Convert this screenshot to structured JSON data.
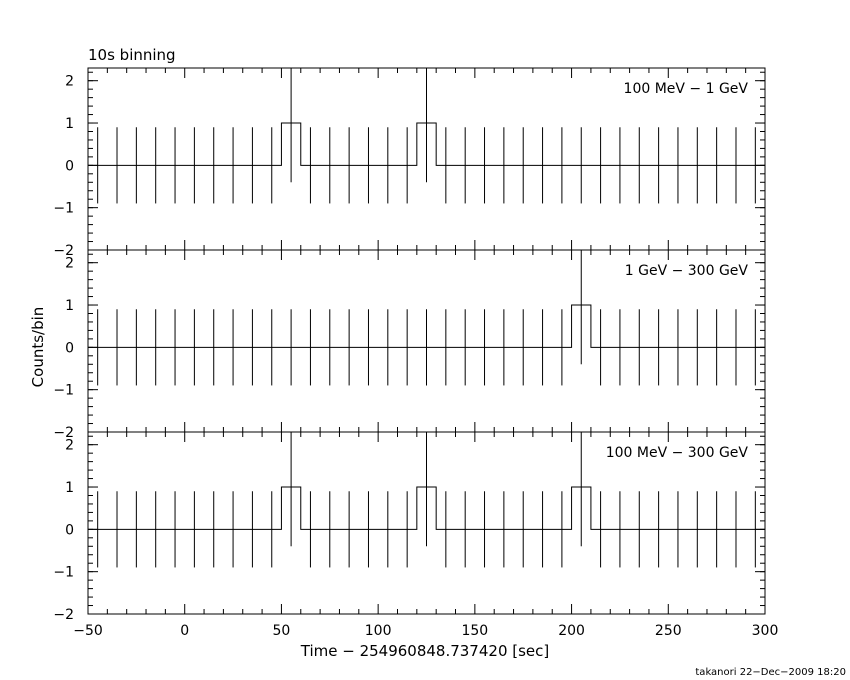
{
  "title": "10s binning",
  "xlabel": "Time − 254960848.737420 [sec]",
  "ylabel": "Counts/bin",
  "footer": "takanori 22−Dec−2009 18:20",
  "chart_data": [
    {
      "type": "line",
      "label": "100 MeV − 1 GeV",
      "xlim": [
        -50,
        300
      ],
      "ylim": [
        -2,
        2.3
      ],
      "yticks": [
        -2,
        -1,
        0,
        1,
        2
      ],
      "bin_width": 10,
      "bin_centers": [
        -45,
        -35,
        -25,
        -15,
        -5,
        5,
        15,
        25,
        35,
        45,
        55,
        65,
        75,
        85,
        95,
        105,
        115,
        125,
        135,
        145,
        155,
        165,
        175,
        185,
        195,
        205,
        215,
        225,
        235,
        245,
        255,
        265,
        275,
        285,
        295
      ],
      "counts": [
        0,
        0,
        0,
        0,
        0,
        0,
        0,
        0,
        0,
        0,
        1,
        0,
        0,
        0,
        0,
        0,
        0,
        1,
        0,
        0,
        0,
        0,
        0,
        0,
        0,
        0,
        0,
        0,
        0,
        0,
        0,
        0,
        0,
        0,
        0
      ],
      "errors": [
        0.9,
        0.9,
        0.9,
        0.9,
        0.9,
        0.9,
        0.9,
        0.9,
        0.9,
        0.9,
        1.4,
        0.9,
        0.9,
        0.9,
        0.9,
        0.9,
        0.9,
        1.4,
        0.9,
        0.9,
        0.9,
        0.9,
        0.9,
        0.9,
        0.9,
        0.9,
        0.9,
        0.9,
        0.9,
        0.9,
        0.9,
        0.9,
        0.9,
        0.9,
        0.9
      ]
    },
    {
      "type": "line",
      "label": "1 GeV − 300 GeV",
      "xlim": [
        -50,
        300
      ],
      "ylim": [
        -2,
        2.3
      ],
      "yticks": [
        -2,
        -1,
        0,
        1,
        2
      ],
      "bin_width": 10,
      "bin_centers": [
        -45,
        -35,
        -25,
        -15,
        -5,
        5,
        15,
        25,
        35,
        45,
        55,
        65,
        75,
        85,
        95,
        105,
        115,
        125,
        135,
        145,
        155,
        165,
        175,
        185,
        195,
        205,
        215,
        225,
        235,
        245,
        255,
        265,
        275,
        285,
        295
      ],
      "counts": [
        0,
        0,
        0,
        0,
        0,
        0,
        0,
        0,
        0,
        0,
        0,
        0,
        0,
        0,
        0,
        0,
        0,
        0,
        0,
        0,
        0,
        0,
        0,
        0,
        0,
        1,
        0,
        0,
        0,
        0,
        0,
        0,
        0,
        0,
        0
      ],
      "errors": [
        0.9,
        0.9,
        0.9,
        0.9,
        0.9,
        0.9,
        0.9,
        0.9,
        0.9,
        0.9,
        0.9,
        0.9,
        0.9,
        0.9,
        0.9,
        0.9,
        0.9,
        0.9,
        0.9,
        0.9,
        0.9,
        0.9,
        0.9,
        0.9,
        0.9,
        1.4,
        0.9,
        0.9,
        0.9,
        0.9,
        0.9,
        0.9,
        0.9,
        0.9,
        0.9
      ]
    },
    {
      "type": "line",
      "label": "100 MeV − 300 GeV",
      "xlim": [
        -50,
        300
      ],
      "ylim": [
        -2,
        2.3
      ],
      "yticks": [
        -2,
        -1,
        0,
        1,
        2
      ],
      "xticks": [
        -50,
        0,
        50,
        100,
        150,
        200,
        250,
        300
      ],
      "bin_width": 10,
      "bin_centers": [
        -45,
        -35,
        -25,
        -15,
        -5,
        5,
        15,
        25,
        35,
        45,
        55,
        65,
        75,
        85,
        95,
        105,
        115,
        125,
        135,
        145,
        155,
        165,
        175,
        185,
        195,
        205,
        215,
        225,
        235,
        245,
        255,
        265,
        275,
        285,
        295
      ],
      "counts": [
        0,
        0,
        0,
        0,
        0,
        0,
        0,
        0,
        0,
        0,
        1,
        0,
        0,
        0,
        0,
        0,
        0,
        1,
        0,
        0,
        0,
        0,
        0,
        0,
        0,
        1,
        0,
        0,
        0,
        0,
        0,
        0,
        0,
        0,
        0
      ],
      "errors": [
        0.9,
        0.9,
        0.9,
        0.9,
        0.9,
        0.9,
        0.9,
        0.9,
        0.9,
        0.9,
        1.4,
        0.9,
        0.9,
        0.9,
        0.9,
        0.9,
        0.9,
        1.4,
        0.9,
        0.9,
        0.9,
        0.9,
        0.9,
        0.9,
        0.9,
        1.4,
        0.9,
        0.9,
        0.9,
        0.9,
        0.9,
        0.9,
        0.9,
        0.9,
        0.9
      ]
    }
  ]
}
